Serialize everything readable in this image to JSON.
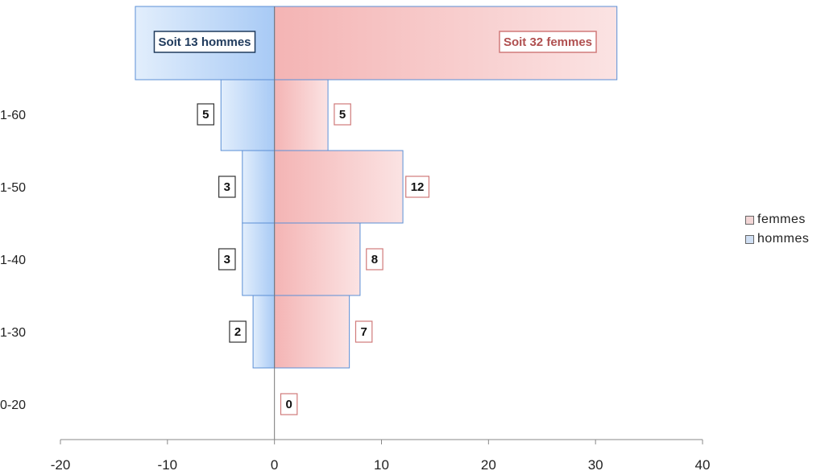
{
  "chart_data": {
    "type": "bar",
    "orientation": "horizontal",
    "categories": [
      "0-20",
      "1-30",
      "1-40",
      "1-50",
      "1-60",
      ""
    ],
    "series": [
      {
        "name": "femmes",
        "values": [
          0,
          7,
          8,
          12,
          5,
          32
        ],
        "labels": [
          "0",
          "7",
          "8",
          "12",
          "5",
          "Soit 32 femmes"
        ],
        "color": "#f3a9a9"
      },
      {
        "name": "hommes",
        "values": [
          0,
          -2,
          -3,
          -3,
          -5,
          -13
        ],
        "labels": [
          "",
          "2",
          "3",
          "3",
          "5",
          "Soit 13 hommes"
        ],
        "color": "#9cc2f2"
      }
    ],
    "xlim": [
      -20,
      40
    ],
    "xticks": [
      -20,
      -10,
      0,
      10,
      20,
      30,
      40
    ],
    "xlabel": "",
    "ylabel": "",
    "grid": false,
    "legend_position": "right"
  },
  "legend": [
    {
      "label": "femmes",
      "color": "#f3a9a9"
    },
    {
      "label": "hommes",
      "color": "#9cc2f2"
    }
  ]
}
